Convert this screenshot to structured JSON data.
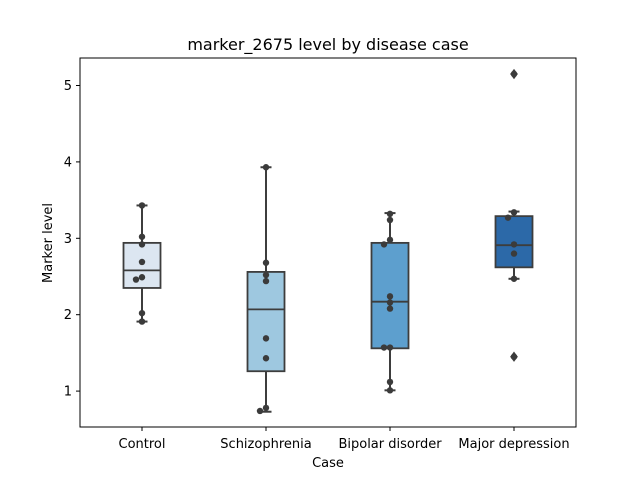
{
  "chart_data": {
    "type": "box",
    "title": "marker_2675 level by disease case",
    "xlabel": "Case",
    "ylabel": "Marker level",
    "categories": [
      "Control",
      "Schizophrenia",
      "Bipolar disorder",
      "Major depression"
    ],
    "ylim": [
      0.53,
      5.36
    ],
    "yticks": [
      1,
      2,
      3,
      4,
      5
    ],
    "grid": false,
    "colors": [
      "#dce6f1",
      "#9ec8e0",
      "#5d9fce",
      "#2c69a8"
    ],
    "boxes": [
      {
        "category": "Control",
        "q1": 2.35,
        "median": 2.58,
        "q3": 2.94,
        "whisker_low": 1.91,
        "whisker_high": 3.43,
        "outliers": []
      },
      {
        "category": "Schizophrenia",
        "q1": 1.26,
        "median": 2.07,
        "q3": 2.56,
        "whisker_low": 0.73,
        "whisker_high": 3.93,
        "outliers": []
      },
      {
        "category": "Bipolar disorder",
        "q1": 1.56,
        "median": 2.17,
        "q3": 2.94,
        "whisker_low": 1.01,
        "whisker_high": 3.33,
        "outliers": []
      },
      {
        "category": "Major depression",
        "q1": 2.62,
        "median": 2.91,
        "q3": 3.29,
        "whisker_low": 2.47,
        "whisker_high": 3.35,
        "outliers": [
          5.15,
          1.45
        ]
      }
    ],
    "points": [
      {
        "category": "Control",
        "values": [
          3.43,
          3.02,
          2.92,
          2.69,
          2.49,
          2.46,
          2.02,
          1.91
        ]
      },
      {
        "category": "Schizophrenia",
        "values": [
          3.93,
          2.68,
          2.52,
          2.44,
          1.69,
          1.43,
          0.78,
          0.74
        ]
      },
      {
        "category": "Bipolar disorder",
        "values": [
          3.32,
          3.24,
          2.98,
          2.92,
          2.24,
          2.16,
          2.08,
          1.57,
          1.57,
          1.12,
          1.01
        ]
      },
      {
        "category": "Major depression",
        "values": [
          5.15,
          3.34,
          3.27,
          2.92,
          2.8,
          2.47,
          1.45
        ]
      }
    ]
  }
}
